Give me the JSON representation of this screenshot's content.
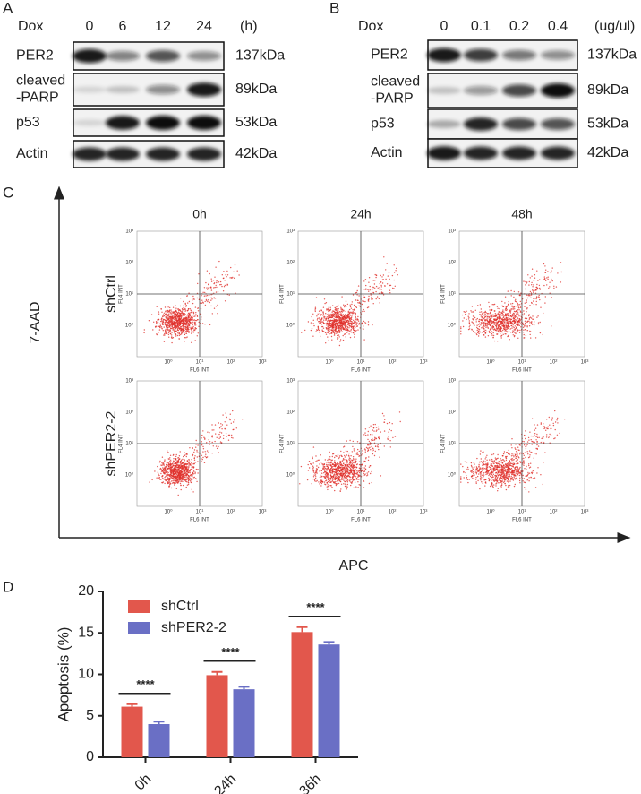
{
  "panel_a": {
    "letter": "A",
    "treatment": "Dox",
    "lanes": [
      "0",
      "6",
      "12",
      "24"
    ],
    "unit": "(h)",
    "rows": [
      {
        "label": [
          "PER2"
        ],
        "size": "137kDa"
      },
      {
        "label": [
          "cleaved",
          "-PARP"
        ],
        "size": "89kDa"
      },
      {
        "label": [
          "p53"
        ],
        "size": "53kDa"
      },
      {
        "label": [
          "Actin"
        ],
        "size": "42kDa"
      }
    ]
  },
  "panel_b": {
    "letter": "B",
    "treatment": "Dox",
    "lanes": [
      "0",
      "0.1",
      "0.2",
      "0.4"
    ],
    "unit": "(ug/ul)",
    "rows": [
      {
        "label": [
          "PER2"
        ],
        "size": "137kDa"
      },
      {
        "label": [
          "cleaved",
          "-PARP"
        ],
        "size": "89kDa"
      },
      {
        "label": [
          "p53"
        ],
        "size": "53kDa"
      },
      {
        "label": [
          "Actin"
        ],
        "size": "42kDa"
      }
    ]
  },
  "panel_c": {
    "letter": "C",
    "y_axis_label": "7-AAD",
    "x_axis_label": "APC",
    "columns": [
      "0h",
      "24h",
      "48h"
    ],
    "rows": [
      "shCtrl",
      "shPER2-2"
    ],
    "plot_x_label": "FL6 INT",
    "plot_y_label": "FL4 INT",
    "plot_ticks": [
      "10⁰",
      "10¹",
      "10²",
      "10³"
    ]
  },
  "chart_data": {
    "type": "bar",
    "panel": "D",
    "ylabel": "Apoptosis (%)",
    "categories": [
      "0h",
      "24h",
      "36h"
    ],
    "series": [
      {
        "name": "shCtrl",
        "color": "#e2574c",
        "values": [
          6.1,
          9.9,
          15.1
        ],
        "errors": [
          0.3,
          0.4,
          0.6
        ]
      },
      {
        "name": "shPER2-2",
        "color": "#6a6fc5",
        "values": [
          4.0,
          8.2,
          13.6
        ],
        "errors": [
          0.3,
          0.3,
          0.3
        ]
      }
    ],
    "ylim": [
      0,
      20
    ],
    "yticks": [
      0,
      5,
      10,
      15,
      20
    ],
    "annotations": [
      "****",
      "****",
      "****"
    ],
    "legend": "upper left"
  }
}
